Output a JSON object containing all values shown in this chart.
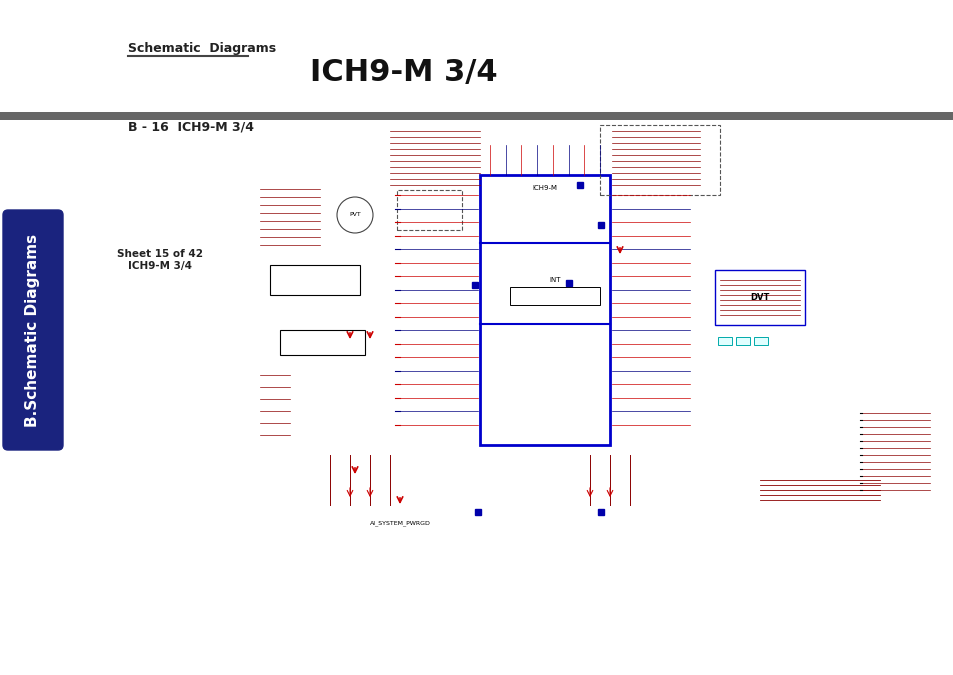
{
  "title": "ICH9-M 3/4",
  "subtitle": "Schematic  Diagrams",
  "footer_bar_color": "#666666",
  "footer_text": "B - 16  ICH9-M 3/4",
  "sidebar_color": "#1a237e",
  "sidebar_text": "B.Schematic Diagrams",
  "sheet_text": "Sheet 15 of 42\nICH9-M 3/4",
  "bg_color": "#ffffff",
  "title_fontsize": 22,
  "subtitle_fontsize": 9,
  "footer_fontsize": 9,
  "sidebar_fontsize": 11
}
